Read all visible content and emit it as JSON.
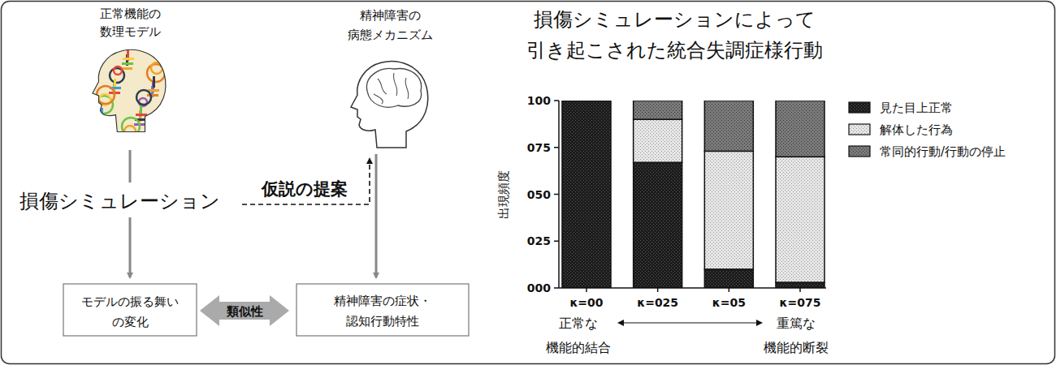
{
  "chart_data": {
    "type": "bar",
    "stacked": true,
    "title": [
      "損傷シミュレーションによって",
      "引き起こされた統合失調症様行動"
    ],
    "y_label": "出現頻度",
    "categories": [
      "κ=00",
      "κ=025",
      "κ=05",
      "κ=075"
    ],
    "series": [
      {
        "name": "見た目上正常",
        "color": "#1c1c1c",
        "values": [
          100,
          67,
          10,
          3
        ]
      },
      {
        "name": "解体した行為",
        "color": "#e6e6e6",
        "values": [
          0,
          23,
          63,
          67
        ]
      },
      {
        "name": "常同的行動/行動の停止",
        "color": "#7a7a7a",
        "values": [
          0,
          10,
          27,
          30
        ]
      }
    ],
    "ylim": [
      0,
      100
    ],
    "yticks": [
      {
        "value": 0,
        "label": "000"
      },
      {
        "value": 25,
        "label": "025"
      },
      {
        "value": 50,
        "label": "050"
      },
      {
        "value": 75,
        "label": "075"
      },
      {
        "value": 100,
        "label": "100"
      }
    ],
    "grid": false,
    "legend": "right",
    "x_annotations": {
      "left": [
        "正常な",
        "機能的結合"
      ],
      "right": [
        "重篤な",
        "機能的断裂"
      ]
    }
  },
  "diagram": {
    "model_title": [
      "正常機能の",
      "数理モデル"
    ],
    "mechanism_title": [
      "精神障害の",
      "病態メカニズム"
    ],
    "simulation_label": "損傷シミュレーション",
    "hypothesis_label": "仮説の提案",
    "model_box": [
      "モデルの振る舞い",
      "の変化"
    ],
    "symptom_box": [
      "精神障害の症状・",
      "認知行動特性"
    ],
    "similarity_label": "類似性"
  }
}
